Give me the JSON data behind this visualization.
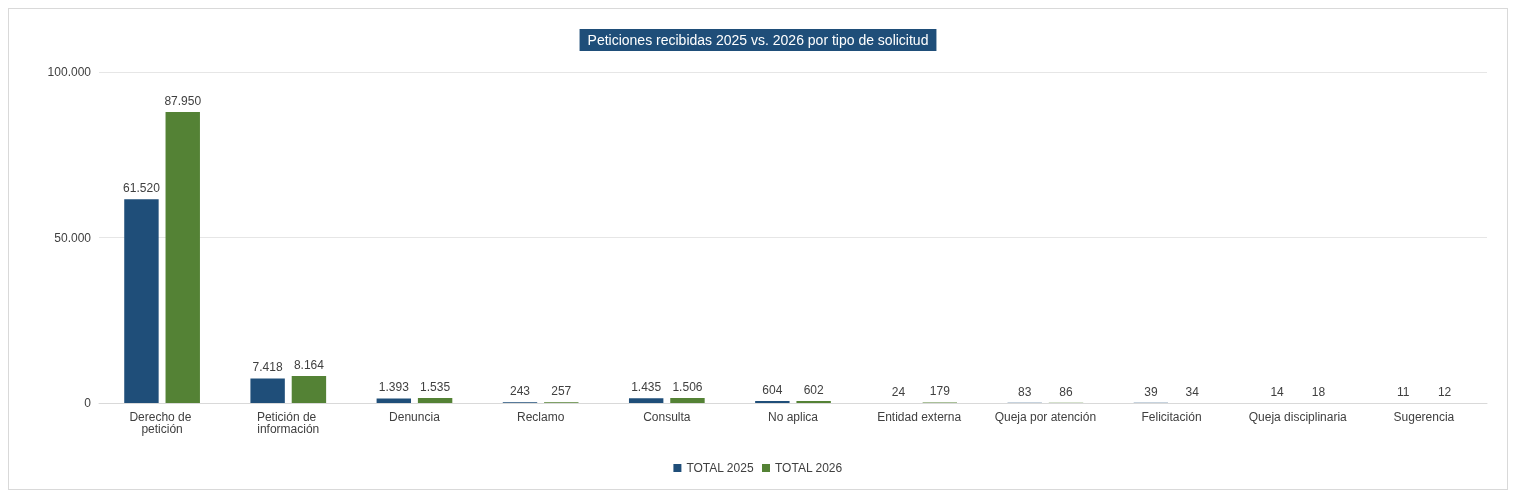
{
  "chart_data": {
    "type": "bar",
    "title": "Peticiones recibidas 2025 vs. 2026 por tipo de solicitud",
    "categories": [
      "Derecho de petición",
      "Petición de información",
      "Denuncia",
      "Reclamo",
      "Consulta",
      "No aplica",
      "Entidad externa",
      "Queja por atención",
      "Felicitación",
      "Queja disciplinaria",
      "Sugerencia"
    ],
    "series": [
      {
        "name": "TOTAL 2025",
        "color": "#1f4e79",
        "values": [
          61520,
          7418,
          1393,
          243,
          1435,
          604,
          24,
          83,
          39,
          14,
          11
        ],
        "value_labels": [
          "61.520",
          "7.418",
          "1.393",
          "243",
          "1.435",
          "604",
          "24",
          "83",
          "39",
          "14",
          "11"
        ]
      },
      {
        "name": "TOTAL 2026",
        "color": "#548235",
        "values": [
          87950,
          8164,
          1535,
          257,
          1506,
          602,
          179,
          86,
          34,
          18,
          12
        ],
        "value_labels": [
          "87.950",
          "8.164",
          "1.535",
          "257",
          "1.506",
          "602",
          "179",
          "86",
          "34",
          "18",
          "12"
        ]
      }
    ],
    "ylim": [
      0,
      100000
    ],
    "yticks": [
      {
        "value": 0,
        "label": "0"
      },
      {
        "value": 50000,
        "label": "50.000"
      },
      {
        "value": 100000,
        "label": "100.000"
      }
    ],
    "grid": "y",
    "legend": "bottom"
  }
}
